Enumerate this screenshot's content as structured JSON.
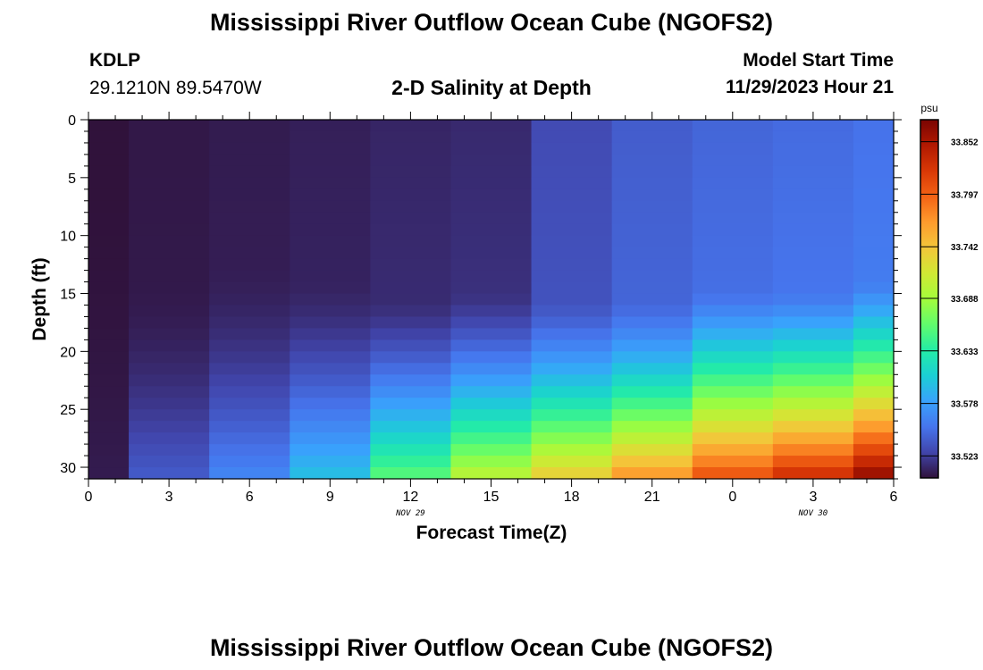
{
  "header": {
    "title": "Mississippi River Outflow Ocean Cube (NGOFS2)",
    "station": "KDLP",
    "coords": "29.1210N  89.5470W",
    "subtitle": "2-D Salinity at Depth",
    "model_label": "Model Start Time",
    "model_time": "11/29/2023 Hour 21"
  },
  "footer": {
    "title": "Mississippi River Outflow Ocean Cube (NGOFS2)"
  },
  "chart_data": {
    "type": "heatmap",
    "title": "2-D Salinity at Depth",
    "xlabel": "Forecast Time(Z)",
    "ylabel": "Depth (ft)",
    "x_ticks": [
      "0",
      "3",
      "6",
      "9",
      "12",
      "15",
      "18",
      "21",
      "0",
      "3",
      "6"
    ],
    "x_date_labels": [
      {
        "label": "NOV 29",
        "at_tick": 4
      },
      {
        "label": "NOV 30",
        "at_tick": 9
      }
    ],
    "y_ticks": [
      "0",
      "5",
      "10",
      "15",
      "20",
      "25",
      "30"
    ],
    "ylim": [
      0,
      31
    ],
    "y_inverted": true,
    "colorbar": {
      "unit": "psu",
      "labels": [
        "33.852",
        "33.797",
        "33.742",
        "33.688",
        "33.633",
        "33.578",
        "33.523"
      ],
      "vmin": 33.5,
      "vmax": 33.875,
      "colors": [
        "#30123b",
        "#4145ab",
        "#4675ed",
        "#39a2fc",
        "#1bcfd4",
        "#24eca6",
        "#61fc6c",
        "#a4fc3b",
        "#d1e834",
        "#f3c63a",
        "#fe9b2d",
        "#f36315",
        "#d93806",
        "#b11901",
        "#7a0402"
      ]
    },
    "time_columns": [
      {
        "t": 0,
        "surface": 33.5,
        "bottom": 33.505,
        "onset": 0.2,
        "power": 1.8
      },
      {
        "t": 3,
        "surface": 33.503,
        "bottom": 33.54,
        "onset": 0.45,
        "power": 1.8
      },
      {
        "t": 6,
        "surface": 33.505,
        "bottom": 33.565,
        "onset": 0.4,
        "power": 1.8
      },
      {
        "t": 9,
        "surface": 33.507,
        "bottom": 33.6,
        "onset": 0.45,
        "power": 1.6
      },
      {
        "t": 12,
        "surface": 33.51,
        "bottom": 33.66,
        "onset": 0.5,
        "power": 1.5
      },
      {
        "t": 15,
        "surface": 33.512,
        "bottom": 33.705,
        "onset": 0.48,
        "power": 1.5
      },
      {
        "t": 18,
        "surface": 33.53,
        "bottom": 33.74,
        "onset": 0.5,
        "power": 1.5
      },
      {
        "t": 21,
        "surface": 33.54,
        "bottom": 33.775,
        "onset": 0.5,
        "power": 1.5
      },
      {
        "t": 24,
        "surface": 33.545,
        "bottom": 33.81,
        "onset": 0.48,
        "power": 1.3
      },
      {
        "t": 27,
        "surface": 33.548,
        "bottom": 33.835,
        "onset": 0.48,
        "power": 1.3
      },
      {
        "t": 30,
        "surface": 33.552,
        "bottom": 33.868,
        "onset": 0.45,
        "power": 1.3
      }
    ]
  }
}
